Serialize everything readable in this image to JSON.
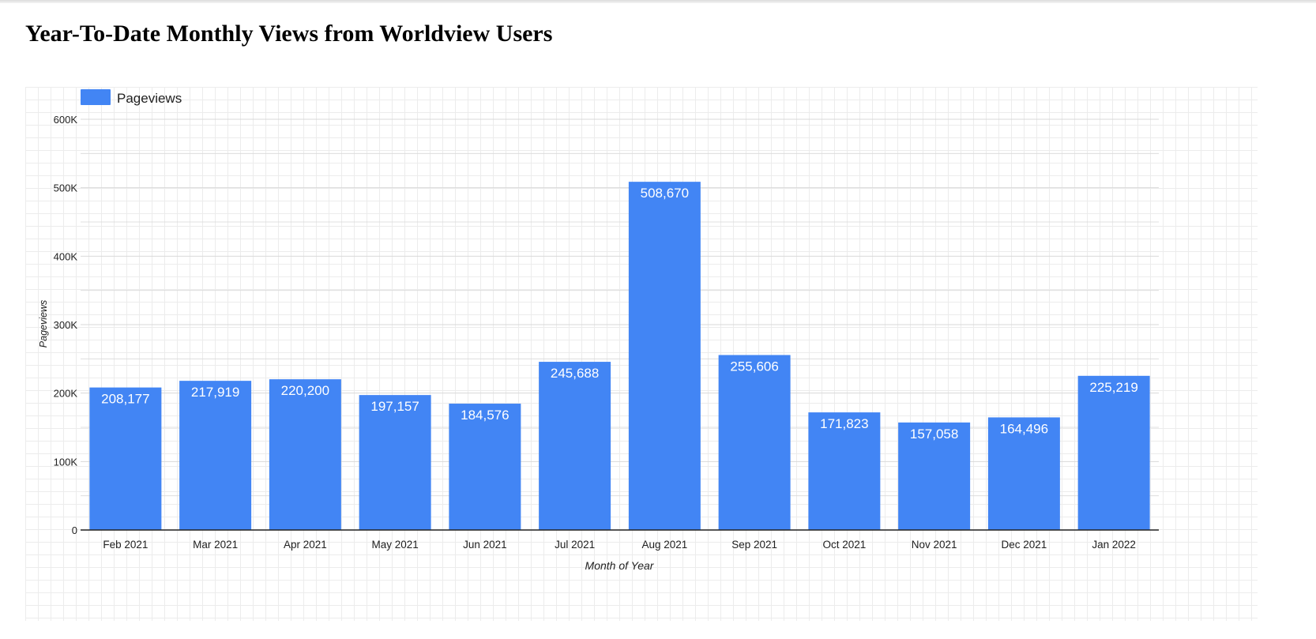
{
  "title": "Year-To-Date Monthly Views from Worldview Users",
  "chart_data": {
    "type": "bar",
    "categories": [
      "Feb 2021",
      "Mar 2021",
      "Apr 2021",
      "May 2021",
      "Jun 2021",
      "Jul 2021",
      "Aug 2021",
      "Sep 2021",
      "Oct 2021",
      "Nov 2021",
      "Dec 2021",
      "Jan 2022"
    ],
    "series": [
      {
        "name": "Pageviews",
        "values": [
          208177,
          217919,
          220200,
          197157,
          184576,
          245688,
          508670,
          255606,
          171823,
          157058,
          164496,
          225219
        ],
        "labels": [
          "208,177",
          "217,919",
          "220,200",
          "197,157",
          "184,576",
          "245,688",
          "508,670",
          "255,606",
          "171,823",
          "157,058",
          "164,496",
          "225,219"
        ]
      }
    ],
    "xlabel": "Month of Year",
    "ylabel": "Pageviews",
    "ylim": [
      0,
      600000
    ],
    "yticks": [
      0,
      100000,
      200000,
      300000,
      400000,
      500000,
      600000
    ],
    "ytick_labels": [
      "0",
      "100K",
      "200K",
      "300K",
      "400K",
      "500K",
      "600K"
    ],
    "grid": true,
    "legend_position": "top-left",
    "colors": {
      "bar": "#4285f4",
      "bar_label": "#ffffff",
      "axis": "#212121",
      "gridline": "#d9d9d9",
      "text": "#212121"
    }
  }
}
